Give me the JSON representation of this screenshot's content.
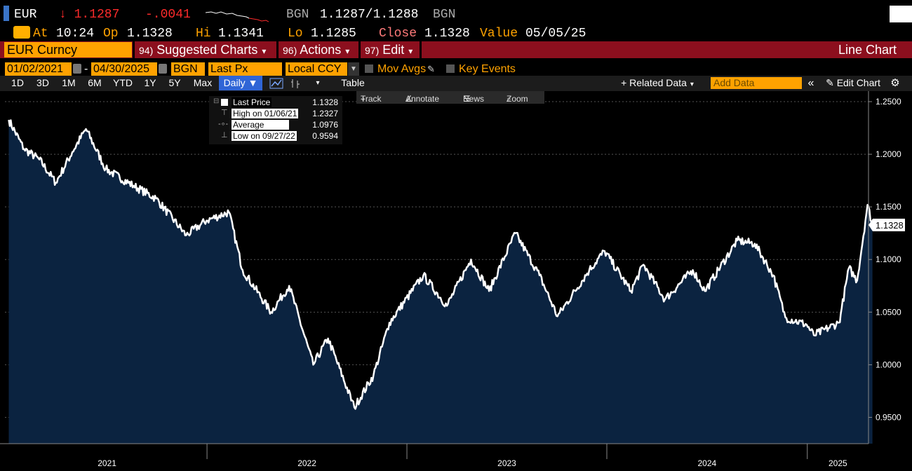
{
  "quote": {
    "ticker": "EUR",
    "last_price": "↓ 1.1287",
    "change": "-.0041",
    "source_left": "BGN",
    "bid_ask": "1.1287/1.1288",
    "source_right": "BGN",
    "at_label": "At",
    "at_time": "10:24",
    "op_label": "Op",
    "op_value": "1.1328",
    "hi_label": "Hi",
    "hi_value": "1.1341",
    "lo_label": "Lo",
    "lo_value": "1.1285",
    "close_label": "Close",
    "close_value": "1.1328",
    "value_label": "Value",
    "value_date": "05/05/25"
  },
  "menu": {
    "security": "EUR Curncy",
    "suggested_num": "94)",
    "suggested": "Suggested Charts",
    "actions_num": "96)",
    "actions": "Actions",
    "edit_num": "97)",
    "edit": "Edit",
    "chart_type": "Line Chart"
  },
  "settings": {
    "start_date": "01/02/2021",
    "dash": "-",
    "end_date": "04/30/2025",
    "source": "BGN",
    "field": "Last Px",
    "currency": "Local CCY",
    "mov_avgs": "Mov Avgs",
    "key_events": "Key Events"
  },
  "toolbar": {
    "periods": [
      "1D",
      "3D",
      "1M",
      "6M",
      "YTD",
      "1Y",
      "5Y",
      "Max"
    ],
    "frequency": "Daily ▼",
    "table": "Table",
    "related_data": "+ Related Data",
    "add_data_placeholder": "Add Data",
    "edit_chart": "Edit Chart"
  },
  "tools": {
    "track": "Track",
    "annotate": "Annotate",
    "news": "News",
    "zoom": "Zoom"
  },
  "legend": [
    {
      "label": "Last Price",
      "value": "1.1328"
    },
    {
      "label": "High on 01/06/21",
      "value": "1.2327"
    },
    {
      "label": "Average",
      "value": "1.0976"
    },
    {
      "label": "Low on 09/27/22",
      "value": "0.9594"
    }
  ],
  "colors": {
    "accent_orange": "#ffa200",
    "down_red": "#ff2b2b",
    "menu_red": "#8c0f1e",
    "area_fill": "#0b2340",
    "active_blue": "#2f65d6"
  },
  "chart_data": {
    "type": "area",
    "ylim": [
      0.925,
      1.26
    ],
    "yticks": [
      "1.2500",
      "1.2000",
      "1.1500",
      "1.1000",
      "1.0500",
      "1.0000",
      "0.9500"
    ],
    "xticks": [
      "2021",
      "2022",
      "2023",
      "2024",
      "2025"
    ],
    "last_value_label": "1.1328",
    "series": [
      {
        "name": "Last Price",
        "x": [
          "2021-01-04",
          "2021-02-01",
          "2021-03-01",
          "2021-03-31",
          "2021-04-30",
          "2021-05-25",
          "2021-06-30",
          "2021-08-20",
          "2021-09-30",
          "2021-11-24",
          "2021-12-31",
          "2022-02-10",
          "2022-03-07",
          "2022-04-28",
          "2022-05-31",
          "2022-07-14",
          "2022-08-10",
          "2022-09-27",
          "2022-11-01",
          "2022-11-30",
          "2023-01-31",
          "2023-03-15",
          "2023-04-28",
          "2023-05-31",
          "2023-07-18",
          "2023-08-31",
          "2023-10-03",
          "2023-11-30",
          "2023-12-28",
          "2024-02-14",
          "2024-03-08",
          "2024-04-16",
          "2024-06-06",
          "2024-06-28",
          "2024-08-26",
          "2024-09-27",
          "2024-10-31",
          "2024-11-22",
          "2024-12-31",
          "2025-01-13",
          "2025-02-28",
          "2025-03-03",
          "2025-03-18",
          "2025-04-02",
          "2025-04-21",
          "2025-04-30"
        ],
        "values": [
          1.2327,
          1.205,
          1.195,
          1.173,
          1.202,
          1.224,
          1.186,
          1.17,
          1.158,
          1.123,
          1.137,
          1.145,
          1.09,
          1.05,
          1.075,
          1.0,
          1.025,
          0.9594,
          0.99,
          1.04,
          1.085,
          1.056,
          1.1,
          1.07,
          1.125,
          1.085,
          1.046,
          1.09,
          1.108,
          1.07,
          1.095,
          1.062,
          1.09,
          1.07,
          1.118,
          1.115,
          1.085,
          1.045,
          1.038,
          1.028,
          1.04,
          1.048,
          1.092,
          1.08,
          1.152,
          1.1328
        ]
      }
    ]
  }
}
